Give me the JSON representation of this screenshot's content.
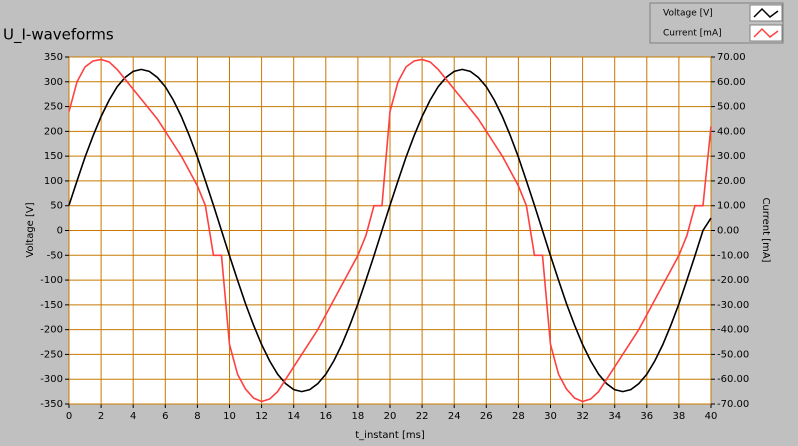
{
  "chart_data": {
    "type": "line",
    "title": "U_I-waveforms",
    "x_label": "t_instant [ms]",
    "y_label": "Voltage [V]",
    "y2_label": "Current [mA]",
    "x": [
      0,
      0.5,
      1,
      1.5,
      2,
      2.5,
      3,
      3.5,
      4,
      4.5,
      5,
      5.5,
      6,
      6.5,
      7,
      7.5,
      8,
      8.5,
      9,
      9.5,
      10,
      10.5,
      11,
      11.5,
      12,
      12.5,
      13,
      13.5,
      14,
      14.5,
      15,
      15.5,
      16,
      16.5,
      17,
      17.5,
      18,
      18.5,
      19,
      19.5,
      20,
      20.5,
      21,
      21.5,
      22,
      22.5,
      23,
      23.5,
      24,
      24.5,
      25,
      25.5,
      26,
      26.5,
      27,
      27.5,
      28,
      28.5,
      29,
      29.5,
      30,
      30.5,
      31,
      31.5,
      32,
      32.5,
      33,
      33.5,
      34,
      34.5,
      35,
      35.5,
      36,
      36.5,
      37,
      37.5,
      38,
      38.5,
      39,
      39.5,
      40
    ],
    "series": [
      {
        "name": "Voltage [V]",
        "color": "#000000",
        "values": [
          51,
          100,
          148,
          191,
          230,
          263,
          290,
          309,
          321,
          325,
          321,
          309,
          290,
          263,
          230,
          191,
          148,
          100,
          51,
          0,
          -51,
          -100,
          -148,
          -191,
          -230,
          -263,
          -290,
          -309,
          -321,
          -325,
          -321,
          -309,
          -290,
          -263,
          -230,
          -191,
          -148,
          -100,
          -51,
          0,
          51,
          100,
          148,
          191,
          230,
          263,
          290,
          309,
          321,
          325,
          321,
          309,
          290,
          263,
          230,
          191,
          148,
          100,
          51,
          0,
          -51,
          -100,
          -148,
          -191,
          -230,
          -263,
          -290,
          -309,
          -321,
          -325,
          -321,
          -309,
          -290,
          -263,
          -230,
          -191,
          -148,
          -100,
          -51,
          0,
          25
        ]
      },
      {
        "name": "Current [mA]",
        "color": "#ff4040",
        "axis": "y2",
        "values": [
          48,
          60,
          66,
          68.4,
          69,
          68,
          65,
          61,
          57,
          53,
          49,
          45,
          40,
          35,
          30,
          24,
          18,
          10,
          -10,
          -10,
          -46,
          -58,
          -64,
          -67.6,
          -69,
          -68,
          -65,
          -60,
          -55,
          -50,
          -45,
          -40,
          -34,
          -28,
          -22,
          -16,
          -10,
          -2,
          10,
          10,
          48,
          60,
          66,
          68.4,
          69,
          68,
          65,
          61,
          57,
          53,
          49,
          45,
          40,
          35,
          30,
          24,
          18,
          10,
          -10,
          -10,
          -46,
          -58,
          -64,
          -67.6,
          -69,
          -68,
          -65,
          -60,
          -55,
          -50,
          -45,
          -40,
          -34,
          -28,
          -22,
          -16,
          -10,
          -2,
          10,
          10,
          42
        ]
      }
    ],
    "xlim": [
      0,
      40
    ],
    "xticks": [
      0,
      2,
      4,
      6,
      8,
      10,
      12,
      14,
      16,
      18,
      20,
      22,
      24,
      26,
      28,
      30,
      32,
      34,
      36,
      38,
      40
    ],
    "ylim": [
      -350,
      350
    ],
    "yticks": [
      -350,
      -300,
      -250,
      -200,
      -150,
      -100,
      -50,
      0,
      50,
      100,
      150,
      200,
      250,
      300,
      350
    ],
    "y2lim": [
      -70,
      70
    ],
    "y2ticks": [
      {
        "value": -70,
        "label": "-70.00"
      },
      {
        "value": -60,
        "label": "-60.00"
      },
      {
        "value": -50,
        "label": "-50.00"
      },
      {
        "value": -40,
        "label": "-40.00"
      },
      {
        "value": -30,
        "label": "-30.00"
      },
      {
        "value": -20,
        "label": "-20.00"
      },
      {
        "value": -10,
        "label": "-10.00"
      },
      {
        "value": 0,
        "label": "0.00"
      },
      {
        "value": 10,
        "label": "10.00"
      },
      {
        "value": 20,
        "label": "20.00"
      },
      {
        "value": 30,
        "label": "30.00"
      },
      {
        "value": 40,
        "label": "40.00"
      },
      {
        "value": 50,
        "label": "50.00"
      },
      {
        "value": 60,
        "label": "60.00"
      },
      {
        "value": 70,
        "label": "70.00"
      }
    ],
    "grid": true,
    "grid_color": "#c87800",
    "legend": "top-right"
  }
}
